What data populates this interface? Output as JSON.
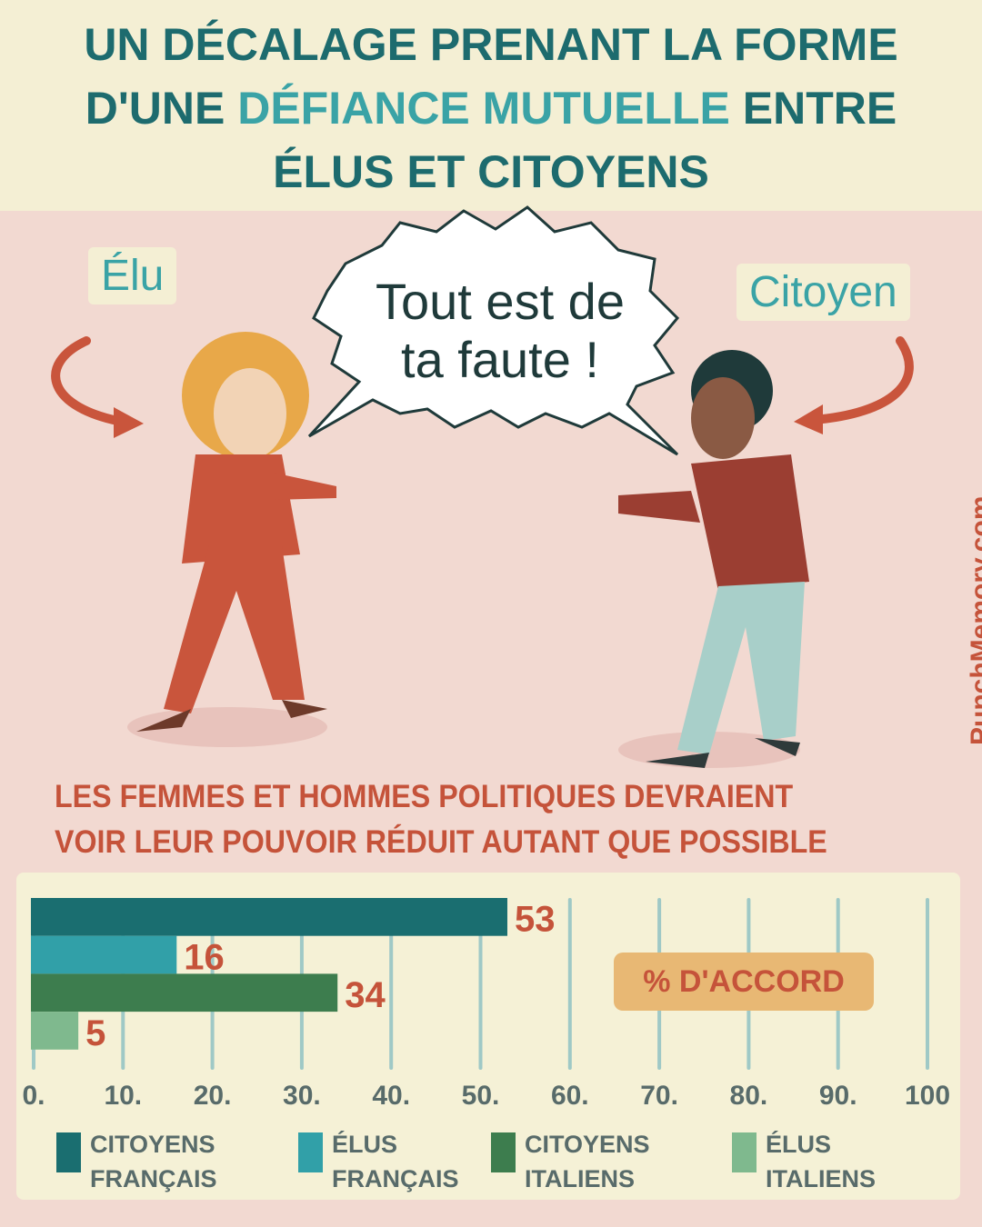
{
  "header": {
    "line1": "UN DÉCALAGE PRENANT LA FORME",
    "line2a": "D'UNE ",
    "line2b": "DÉFIANCE MUTUELLE",
    "line2c": " ENTRE",
    "line3": "ÉLUS ET CITOYENS"
  },
  "illustration": {
    "elu_label": "Élu",
    "citoyen_label": "Citoyen",
    "speech_line1": "Tout est de",
    "speech_line2": "ta faute !",
    "brand": "PunchMemory.com"
  },
  "chart_data": {
    "type": "bar",
    "orientation": "horizontal",
    "title": "LES FEMMES ET HOMMES POLITIQUES DEVRAIENT VOIR LEUR POUVOIR RÉDUIT AUTANT QUE POSSIBLE",
    "title_line1": "LES FEMMES ET HOMMES POLITIQUES DEVRAIENT",
    "title_line2": "VOIR LEUR POUVOIR RÉDUIT AUTANT QUE POSSIBLE",
    "unit_label": "% D'ACCORD",
    "xlim": [
      0,
      100
    ],
    "ticks": [
      "0.",
      "10.",
      "20.",
      "30.",
      "40.",
      "50.",
      "60.",
      "70.",
      "80.",
      "90.",
      "100"
    ],
    "series": [
      {
        "name_line1": "CITOYENS",
        "name_line2": "FRANÇAIS",
        "value": 53,
        "label": "53",
        "color": "#1a6e70"
      },
      {
        "name_line1": "ÉLUS",
        "name_line2": "FRANÇAIS",
        "value": 16,
        "label": "16",
        "color": "#31a0a8"
      },
      {
        "name_line1": "CITOYENS",
        "name_line2": "ITALIENS",
        "value": 34,
        "label": "34",
        "color": "#3d7d4e"
      },
      {
        "name_line1": "ÉLUS",
        "name_line2": "ITALIENS",
        "value": 5,
        "label": "5",
        "color": "#7fb98e"
      }
    ],
    "grid": true,
    "legend": "bottom"
  }
}
